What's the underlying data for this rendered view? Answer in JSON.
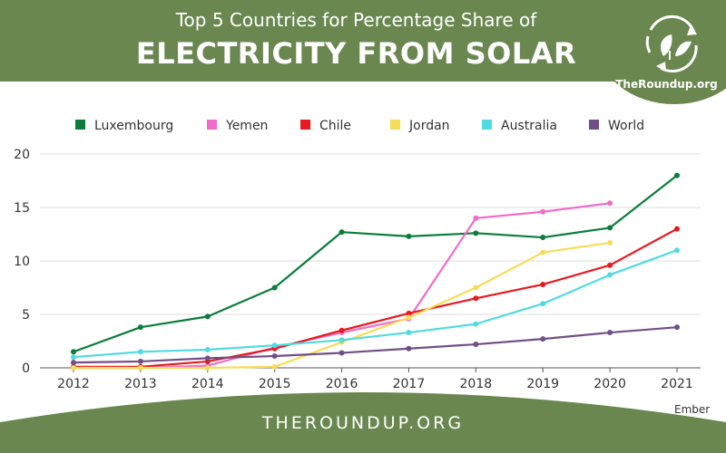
{
  "header": {
    "title_line1": "Top 5 Countries for Percentage Share of",
    "title_line2": "ELECTRICITY FROM SOLAR",
    "logo_text": "TheRoundup.org",
    "background_color": "#6a8750"
  },
  "footer": {
    "site": "THEROUNDUP.ORG"
  },
  "chart_data": {
    "type": "line",
    "title": "Top 5 Countries for Percentage Share of ELECTRICITY FROM SOLAR",
    "source": "Ember",
    "xlabel": "",
    "ylabel": "",
    "x": [
      2012,
      2013,
      2014,
      2015,
      2016,
      2017,
      2018,
      2019,
      2020,
      2021
    ],
    "xtick_labels": [
      "2012",
      "2013",
      "2014",
      "2015",
      "2016",
      "2017",
      "2018",
      "2019",
      "2020",
      "2021"
    ],
    "ylim": [
      0,
      20
    ],
    "yticks": [
      0,
      5,
      10,
      15,
      20
    ],
    "ytick_labels": [
      "0",
      "5",
      "10",
      "15",
      "20"
    ],
    "grid": "horizontal",
    "legend_position": "top",
    "series": [
      {
        "name": "Luxembourg",
        "color": "#0a7d3b",
        "values": [
          1.5,
          3.8,
          4.8,
          7.5,
          12.7,
          12.3,
          12.6,
          12.2,
          13.1,
          18.0
        ]
      },
      {
        "name": "Yemen",
        "color": "#f06cc8",
        "values": [
          0.0,
          0.0,
          0.2,
          1.9,
          3.3,
          4.6,
          14.0,
          14.6,
          15.4,
          null
        ]
      },
      {
        "name": "Chile",
        "color": "#e8191f",
        "values": [
          0.1,
          0.1,
          0.6,
          1.8,
          3.5,
          5.1,
          6.5,
          7.8,
          9.6,
          13.0
        ]
      },
      {
        "name": "Jordan",
        "color": "#f7dc56",
        "values": [
          0.0,
          0.0,
          0.0,
          0.1,
          2.4,
          4.7,
          7.5,
          10.8,
          11.7,
          null
        ]
      },
      {
        "name": "Australia",
        "color": "#4fdbe0",
        "values": [
          1.0,
          1.5,
          1.7,
          2.1,
          2.6,
          3.3,
          4.1,
          6.0,
          8.7,
          11.0
        ]
      },
      {
        "name": "World",
        "color": "#714f86",
        "values": [
          0.5,
          0.6,
          0.9,
          1.1,
          1.4,
          1.8,
          2.2,
          2.7,
          3.3,
          3.8
        ]
      }
    ]
  }
}
